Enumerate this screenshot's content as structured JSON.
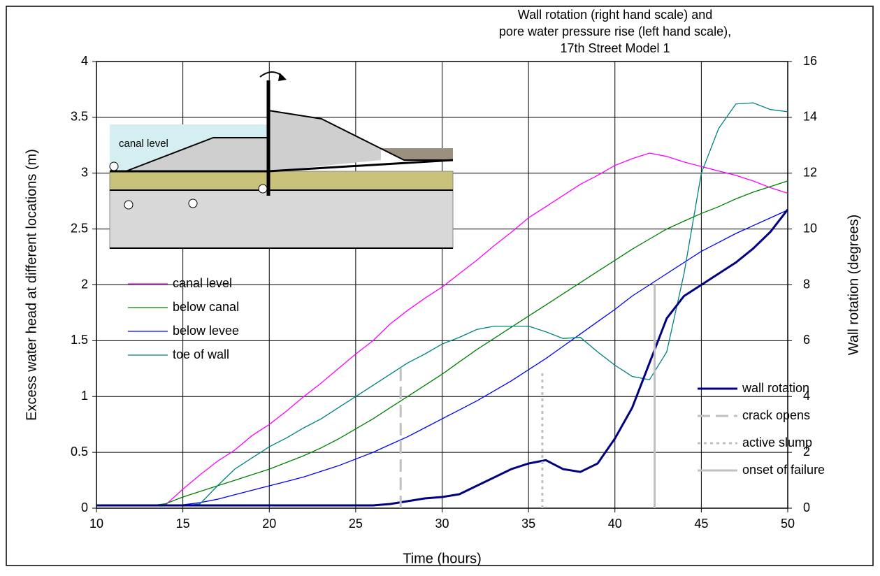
{
  "chart_data": {
    "type": "line",
    "title": [
      "Wall rotation (right hand scale) and",
      "pore water pressure rise (left hand scale),",
      "17th Street Model 1"
    ],
    "x_label": "Time (hours)",
    "y_label": "Excess water head at different locations (m)",
    "y2_label": "Wall rotation (degrees)",
    "inset_label": "canal level",
    "xlim": [
      10,
      50
    ],
    "xticks": [
      10,
      15,
      20,
      25,
      30,
      35,
      40,
      45,
      50
    ],
    "ylim": [
      0,
      4
    ],
    "yticks": [
      0,
      0.5,
      1,
      1.5,
      2,
      2.5,
      3,
      3.5,
      4
    ],
    "y2lim": [
      0,
      16
    ],
    "y2ticks": [
      0,
      2,
      4,
      6,
      8,
      10,
      12,
      14,
      16
    ],
    "grid": true,
    "x": [
      10,
      11,
      12,
      13,
      14,
      15,
      16,
      17,
      18,
      19,
      20,
      21,
      22,
      23,
      24,
      25,
      26,
      27,
      28,
      29,
      30,
      31,
      32,
      33,
      34,
      35,
      36,
      37,
      38,
      39,
      40,
      41,
      42,
      43,
      44,
      45,
      46,
      47,
      48,
      49,
      50
    ],
    "series": [
      {
        "name": "canal level",
        "color": "#ff00ff",
        "values": [
          0.02,
          0.02,
          0.02,
          0.02,
          0.03,
          0.17,
          0.3,
          0.42,
          0.52,
          0.65,
          0.75,
          0.87,
          1.0,
          1.12,
          1.25,
          1.38,
          1.5,
          1.65,
          1.77,
          1.88,
          1.98,
          2.1,
          2.22,
          2.35,
          2.47,
          2.6,
          2.7,
          2.8,
          2.9,
          2.98,
          3.07,
          3.13,
          3.18,
          3.15,
          3.1,
          3.06,
          3.02,
          2.98,
          2.93,
          2.87,
          2.82
        ]
      },
      {
        "name": "below canal",
        "color": "#008000",
        "values": [
          0.02,
          0.02,
          0.02,
          0.02,
          0.04,
          0.1,
          0.15,
          0.2,
          0.25,
          0.3,
          0.35,
          0.41,
          0.47,
          0.54,
          0.62,
          0.71,
          0.8,
          0.9,
          1.0,
          1.1,
          1.2,
          1.31,
          1.42,
          1.52,
          1.62,
          1.72,
          1.82,
          1.92,
          2.02,
          2.12,
          2.22,
          2.32,
          2.41,
          2.5,
          2.57,
          2.64,
          2.7,
          2.77,
          2.83,
          2.88,
          2.93
        ]
      },
      {
        "name": "below levee",
        "color": "#0000ff",
        "values": [
          0.02,
          0.02,
          0.02,
          0.02,
          0.02,
          0.03,
          0.05,
          0.08,
          0.12,
          0.16,
          0.2,
          0.24,
          0.28,
          0.33,
          0.38,
          0.44,
          0.5,
          0.57,
          0.64,
          0.72,
          0.8,
          0.88,
          0.96,
          1.05,
          1.14,
          1.24,
          1.34,
          1.45,
          1.56,
          1.67,
          1.78,
          1.9,
          2.0,
          2.1,
          2.2,
          2.3,
          2.38,
          2.46,
          2.53,
          2.6,
          2.67
        ]
      },
      {
        "name": "toe of wall",
        "color": "#008080",
        "values": [
          0.02,
          0.02,
          0.02,
          0.02,
          0.02,
          0.02,
          0.04,
          0.2,
          0.35,
          0.45,
          0.55,
          0.63,
          0.72,
          0.8,
          0.9,
          1.0,
          1.1,
          1.2,
          1.3,
          1.38,
          1.47,
          1.53,
          1.6,
          1.63,
          1.63,
          1.63,
          1.58,
          1.52,
          1.53,
          1.4,
          1.28,
          1.18,
          1.15,
          1.4,
          2.1,
          3.0,
          3.4,
          3.62,
          3.63,
          3.57,
          3.55
        ]
      },
      {
        "name": "wall rotation",
        "color": "#000080",
        "axis": "y2",
        "values": [
          0.1,
          0.1,
          0.1,
          0.1,
          0.1,
          0.1,
          0.1,
          0.1,
          0.1,
          0.1,
          0.1,
          0.1,
          0.1,
          0.1,
          0.1,
          0.1,
          0.1,
          0.15,
          0.25,
          0.35,
          0.4,
          0.5,
          0.8,
          1.1,
          1.4,
          1.6,
          1.72,
          1.4,
          1.3,
          1.6,
          2.5,
          3.6,
          5.2,
          6.8,
          7.6,
          8.0,
          8.4,
          8.8,
          9.3,
          9.9,
          10.7
        ]
      },
      {
        "name": "crack opens",
        "color": "#c0c0c0",
        "dash": "dashed",
        "x": [
          27.6,
          27.6
        ],
        "values": [
          0,
          1.3
        ]
      },
      {
        "name": "active slump",
        "color": "#c0c0c0",
        "dash": "dotted",
        "x": [
          35.8,
          35.8
        ],
        "values": [
          0,
          1.23
        ]
      },
      {
        "name": "onset of failure",
        "color": "#c0c0c0",
        "dash": "solid",
        "x": [
          42.3,
          42.3
        ],
        "values": [
          0,
          2.0
        ]
      }
    ]
  }
}
